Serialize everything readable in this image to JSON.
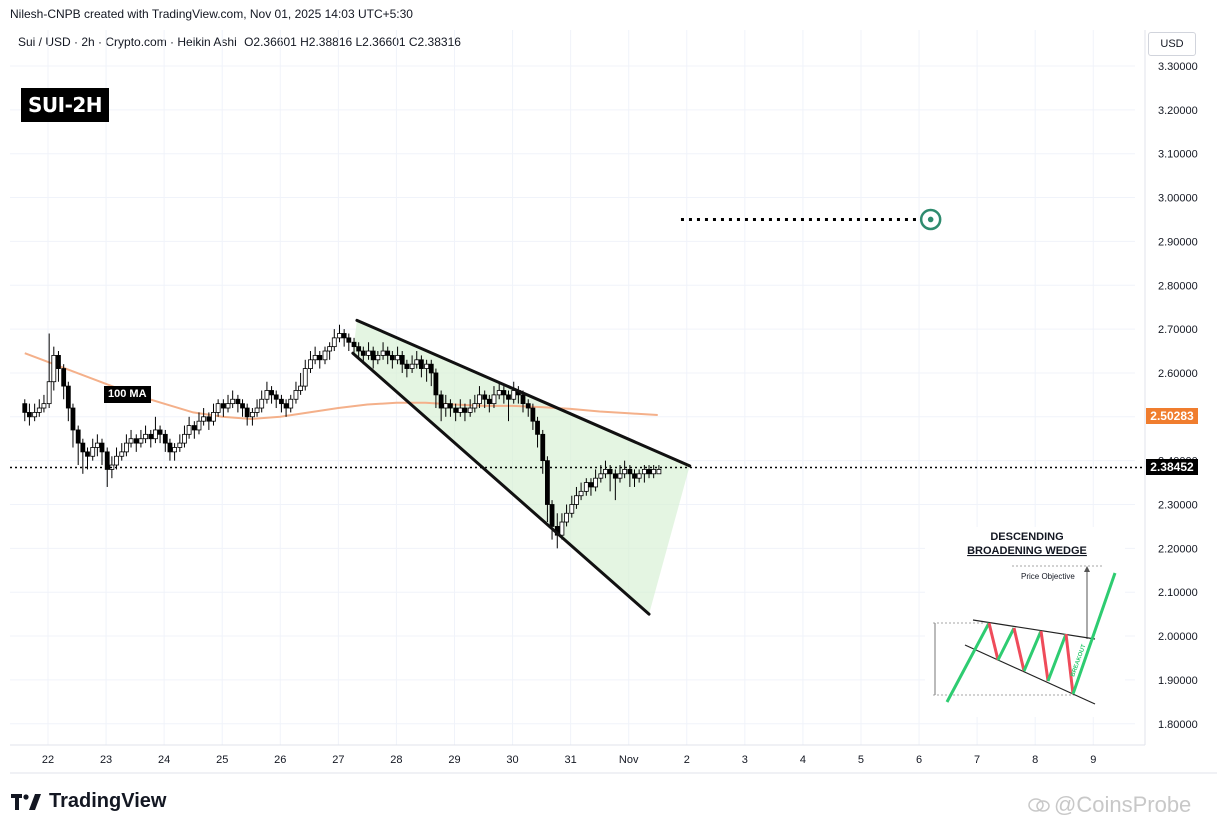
{
  "header": {
    "author_line": "Nilesh-CNPB created with TradingView.com, Nov 01, 2025 14:03 UTC+5:30",
    "symbol_line": "Sui / USD · 2h · Crypto.com · Heikin Ashi",
    "ohlc": "O2.36601  H2.38816  L2.36601  C2.38316"
  },
  "badge": "SUI-2H",
  "currency": "USD",
  "logo_text": "TradingView",
  "watermark": "@CoinsProbe",
  "ma_label": "100 MA",
  "price_tags": {
    "ma_value": "2.50283",
    "last_price": "2.38452",
    "ma_color": "#f07d2e",
    "last_color": "#000000"
  },
  "chart_data": {
    "type": "candlestick",
    "y_ticks": [
      "3.30000",
      "3.20000",
      "3.10000",
      "3.00000",
      "2.90000",
      "2.80000",
      "2.70000",
      "2.60000",
      "2.50000",
      "2.40000",
      "2.30000",
      "2.20000",
      "2.10000",
      "2.00000",
      "1.90000",
      "1.80000"
    ],
    "ylim": [
      1.76,
      3.36
    ],
    "x_ticks": [
      "22",
      "23",
      "24",
      "25",
      "26",
      "27",
      "28",
      "29",
      "30",
      "31",
      "Nov",
      "2",
      "3",
      "4",
      "5",
      "6",
      "7",
      "8",
      "9"
    ],
    "xlim": [
      21.6,
      40.1
    ],
    "candles": [
      [
        21.6,
        2.53,
        2.51,
        2.54,
        2.49
      ],
      [
        21.68,
        2.51,
        2.5,
        2.53,
        2.48
      ],
      [
        21.77,
        2.5,
        2.51,
        2.53,
        2.49
      ],
      [
        21.85,
        2.51,
        2.52,
        2.54,
        2.5
      ],
      [
        21.93,
        2.52,
        2.53,
        2.55,
        2.51
      ],
      [
        22.02,
        2.53,
        2.58,
        2.69,
        2.52
      ],
      [
        22.1,
        2.58,
        2.64,
        2.66,
        2.56
      ],
      [
        22.18,
        2.64,
        2.61,
        2.65,
        2.58
      ],
      [
        22.27,
        2.61,
        2.57,
        2.62,
        2.54
      ],
      [
        22.35,
        2.57,
        2.52,
        2.58,
        2.49
      ],
      [
        22.43,
        2.52,
        2.47,
        2.53,
        2.43
      ],
      [
        22.52,
        2.47,
        2.44,
        2.48,
        2.39
      ],
      [
        22.6,
        2.44,
        2.42,
        2.45,
        2.37
      ],
      [
        22.68,
        2.42,
        2.41,
        2.43,
        2.38
      ],
      [
        22.77,
        2.41,
        2.43,
        2.45,
        2.4
      ],
      [
        22.85,
        2.43,
        2.44,
        2.46,
        2.41
      ],
      [
        22.93,
        2.44,
        2.42,
        2.45,
        2.39
      ],
      [
        23.02,
        2.42,
        2.38,
        2.43,
        2.34
      ],
      [
        23.1,
        2.38,
        2.39,
        2.41,
        2.36
      ],
      [
        23.18,
        2.39,
        2.41,
        2.43,
        2.38
      ],
      [
        23.27,
        2.41,
        2.42,
        2.44,
        2.4
      ],
      [
        23.35,
        2.42,
        2.44,
        2.46,
        2.41
      ],
      [
        23.43,
        2.44,
        2.45,
        2.47,
        2.43
      ],
      [
        23.52,
        2.45,
        2.44,
        2.46,
        2.42
      ],
      [
        23.6,
        2.44,
        2.45,
        2.47,
        2.43
      ],
      [
        23.68,
        2.45,
        2.46,
        2.48,
        2.44
      ],
      [
        23.77,
        2.46,
        2.45,
        2.47,
        2.43
      ],
      [
        23.85,
        2.45,
        2.47,
        2.5,
        2.44
      ],
      [
        23.93,
        2.47,
        2.46,
        2.48,
        2.44
      ],
      [
        24.02,
        2.46,
        2.44,
        2.47,
        2.42
      ],
      [
        24.1,
        2.44,
        2.42,
        2.45,
        2.4
      ],
      [
        24.18,
        2.42,
        2.43,
        2.44,
        2.4
      ],
      [
        24.27,
        2.43,
        2.44,
        2.46,
        2.42
      ],
      [
        24.35,
        2.44,
        2.46,
        2.48,
        2.43
      ],
      [
        24.43,
        2.46,
        2.48,
        2.5,
        2.45
      ],
      [
        24.52,
        2.48,
        2.47,
        2.49,
        2.45
      ],
      [
        24.6,
        2.47,
        2.49,
        2.51,
        2.46
      ],
      [
        24.68,
        2.49,
        2.5,
        2.52,
        2.48
      ],
      [
        24.77,
        2.5,
        2.49,
        2.51,
        2.47
      ],
      [
        24.85,
        2.49,
        2.51,
        2.53,
        2.48
      ],
      [
        24.93,
        2.51,
        2.53,
        2.54,
        2.5
      ],
      [
        25.02,
        2.53,
        2.52,
        2.54,
        2.5
      ],
      [
        25.1,
        2.52,
        2.53,
        2.55,
        2.51
      ],
      [
        25.18,
        2.53,
        2.54,
        2.56,
        2.52
      ],
      [
        25.27,
        2.54,
        2.53,
        2.55,
        2.51
      ],
      [
        25.35,
        2.53,
        2.52,
        2.54,
        2.5
      ],
      [
        25.43,
        2.52,
        2.5,
        2.53,
        2.48
      ],
      [
        25.52,
        2.5,
        2.51,
        2.52,
        2.48
      ],
      [
        25.6,
        2.51,
        2.52,
        2.54,
        2.5
      ],
      [
        25.68,
        2.52,
        2.54,
        2.56,
        2.51
      ],
      [
        25.77,
        2.54,
        2.56,
        2.58,
        2.53
      ],
      [
        25.85,
        2.56,
        2.55,
        2.57,
        2.53
      ],
      [
        25.93,
        2.55,
        2.54,
        2.56,
        2.52
      ],
      [
        26.02,
        2.54,
        2.53,
        2.55,
        2.51
      ],
      [
        26.1,
        2.53,
        2.52,
        2.54,
        2.5
      ],
      [
        26.18,
        2.52,
        2.54,
        2.55,
        2.51
      ],
      [
        26.27,
        2.54,
        2.56,
        2.58,
        2.53
      ],
      [
        26.35,
        2.56,
        2.57,
        2.6,
        2.55
      ],
      [
        26.43,
        2.57,
        2.61,
        2.63,
        2.56
      ],
      [
        26.52,
        2.61,
        2.63,
        2.65,
        2.6
      ],
      [
        26.6,
        2.63,
        2.64,
        2.66,
        2.62
      ],
      [
        26.68,
        2.64,
        2.63,
        2.65,
        2.61
      ],
      [
        26.77,
        2.63,
        2.65,
        2.66,
        2.62
      ],
      [
        26.85,
        2.65,
        2.66,
        2.67,
        2.63
      ],
      [
        26.93,
        2.66,
        2.68,
        2.7,
        2.65
      ],
      [
        27.02,
        2.68,
        2.69,
        2.71,
        2.67
      ],
      [
        27.1,
        2.69,
        2.68,
        2.7,
        2.66
      ],
      [
        27.18,
        2.68,
        2.67,
        2.69,
        2.65
      ],
      [
        27.27,
        2.67,
        2.66,
        2.68,
        2.64
      ],
      [
        27.35,
        2.66,
        2.65,
        2.67,
        2.63
      ],
      [
        27.43,
        2.65,
        2.64,
        2.66,
        2.62
      ],
      [
        27.52,
        2.64,
        2.65,
        2.67,
        2.63
      ],
      [
        27.6,
        2.65,
        2.63,
        2.66,
        2.61
      ],
      [
        27.68,
        2.63,
        2.64,
        2.65,
        2.62
      ],
      [
        27.77,
        2.64,
        2.65,
        2.67,
        2.63
      ],
      [
        27.85,
        2.65,
        2.64,
        2.66,
        2.62
      ],
      [
        27.93,
        2.64,
        2.63,
        2.65,
        2.61
      ],
      [
        28.02,
        2.63,
        2.64,
        2.66,
        2.62
      ],
      [
        28.1,
        2.64,
        2.62,
        2.65,
        2.6
      ],
      [
        28.18,
        2.62,
        2.61,
        2.63,
        2.59
      ],
      [
        28.27,
        2.61,
        2.62,
        2.64,
        2.6
      ],
      [
        28.35,
        2.62,
        2.63,
        2.65,
        2.61
      ],
      [
        28.43,
        2.63,
        2.61,
        2.64,
        2.59
      ],
      [
        28.52,
        2.61,
        2.62,
        2.63,
        2.58
      ],
      [
        28.6,
        2.62,
        2.6,
        2.63,
        2.57
      ],
      [
        28.68,
        2.6,
        2.55,
        2.61,
        2.52
      ],
      [
        28.77,
        2.55,
        2.52,
        2.56,
        2.49
      ],
      [
        28.85,
        2.52,
        2.53,
        2.55,
        2.5
      ],
      [
        28.93,
        2.53,
        2.52,
        2.54,
        2.5
      ],
      [
        29.02,
        2.52,
        2.51,
        2.53,
        2.49
      ],
      [
        29.1,
        2.51,
        2.52,
        2.54,
        2.5
      ],
      [
        29.18,
        2.52,
        2.51,
        2.53,
        2.49
      ],
      [
        29.27,
        2.51,
        2.52,
        2.54,
        2.5
      ],
      [
        29.35,
        2.52,
        2.53,
        2.55,
        2.51
      ],
      [
        29.43,
        2.53,
        2.55,
        2.57,
        2.52
      ],
      [
        29.52,
        2.55,
        2.54,
        2.56,
        2.52
      ],
      [
        29.6,
        2.54,
        2.53,
        2.55,
        2.51
      ],
      [
        29.68,
        2.53,
        2.55,
        2.57,
        2.52
      ],
      [
        29.77,
        2.55,
        2.56,
        2.58,
        2.54
      ],
      [
        29.85,
        2.56,
        2.55,
        2.57,
        2.53
      ],
      [
        29.93,
        2.55,
        2.54,
        2.56,
        2.49
      ],
      [
        30.02,
        2.54,
        2.56,
        2.58,
        2.53
      ],
      [
        30.1,
        2.56,
        2.55,
        2.57,
        2.53
      ],
      [
        30.18,
        2.55,
        2.53,
        2.56,
        2.51
      ],
      [
        30.27,
        2.53,
        2.52,
        2.54,
        2.5
      ],
      [
        30.35,
        2.52,
        2.49,
        2.53,
        2.47
      ],
      [
        30.43,
        2.49,
        2.46,
        2.5,
        2.43
      ],
      [
        30.52,
        2.46,
        2.4,
        2.47,
        2.37
      ],
      [
        30.6,
        2.4,
        2.3,
        2.41,
        2.26
      ],
      [
        30.68,
        2.3,
        2.25,
        2.31,
        2.22
      ],
      [
        30.77,
        2.25,
        2.23,
        2.28,
        2.2
      ],
      [
        30.85,
        2.23,
        2.26,
        2.28,
        2.22
      ],
      [
        30.93,
        2.26,
        2.28,
        2.3,
        2.25
      ],
      [
        31.02,
        2.28,
        2.3,
        2.32,
        2.27
      ],
      [
        31.1,
        2.3,
        2.32,
        2.34,
        2.29
      ],
      [
        31.18,
        2.32,
        2.33,
        2.35,
        2.31
      ],
      [
        31.27,
        2.33,
        2.35,
        2.36,
        2.32
      ],
      [
        31.35,
        2.35,
        2.34,
        2.36,
        2.32
      ],
      [
        31.43,
        2.34,
        2.36,
        2.38,
        2.33
      ],
      [
        31.52,
        2.36,
        2.37,
        2.39,
        2.35
      ],
      [
        31.6,
        2.37,
        2.38,
        2.4,
        2.36
      ],
      [
        31.68,
        2.38,
        2.37,
        2.39,
        2.33
      ],
      [
        31.77,
        2.37,
        2.36,
        2.38,
        2.31
      ],
      [
        31.85,
        2.36,
        2.37,
        2.39,
        2.35
      ],
      [
        31.93,
        2.37,
        2.38,
        2.4,
        2.36
      ],
      [
        32.02,
        2.38,
        2.37,
        2.39,
        2.34
      ],
      [
        32.1,
        2.37,
        2.36,
        2.38,
        2.34
      ],
      [
        32.18,
        2.36,
        2.37,
        2.38,
        2.35
      ],
      [
        32.27,
        2.37,
        2.38,
        2.39,
        2.35
      ],
      [
        32.35,
        2.38,
        2.37,
        2.39,
        2.36
      ],
      [
        32.43,
        2.37,
        2.38,
        2.39,
        2.36
      ],
      [
        32.52,
        2.37,
        2.38,
        2.39,
        2.37
      ]
    ],
    "ma100": [
      [
        21.6,
        2.645
      ],
      [
        22.0,
        2.625
      ],
      [
        22.5,
        2.6
      ],
      [
        23.0,
        2.575
      ],
      [
        23.5,
        2.55
      ],
      [
        24.0,
        2.53
      ],
      [
        24.5,
        2.51
      ],
      [
        25.0,
        2.5
      ],
      [
        25.5,
        2.495
      ],
      [
        26.0,
        2.5
      ],
      [
        26.5,
        2.51
      ],
      [
        27.0,
        2.52
      ],
      [
        27.5,
        2.528
      ],
      [
        28.0,
        2.532
      ],
      [
        28.5,
        2.532
      ],
      [
        29.0,
        2.528
      ],
      [
        29.5,
        2.525
      ],
      [
        30.0,
        2.525
      ],
      [
        30.5,
        2.522
      ],
      [
        31.0,
        2.518
      ],
      [
        31.5,
        2.512
      ],
      [
        32.0,
        2.508
      ],
      [
        32.5,
        2.504
      ]
    ],
    "wedge": {
      "upper": [
        [
          27.32,
          2.72
        ],
        [
          33.05,
          2.388
        ]
      ],
      "lower": [
        [
          27.25,
          2.645
        ],
        [
          32.35,
          2.05
        ]
      ],
      "fill_polygon": [
        [
          27.32,
          2.72
        ],
        [
          33.05,
          2.388
        ],
        [
          32.35,
          2.05
        ],
        [
          27.25,
          2.645
        ]
      ]
    },
    "target": {
      "price": 2.95,
      "line_start_x": 32.9,
      "point_x": 37.2
    },
    "last_price": 2.38452,
    "ma_last": 2.50283,
    "inset": {
      "title_line1": "DESCENDING",
      "title_line2": "BROADENING WEDGE",
      "objective_label": "Price Objective",
      "diagonal_label": "BREAKOUT"
    }
  }
}
